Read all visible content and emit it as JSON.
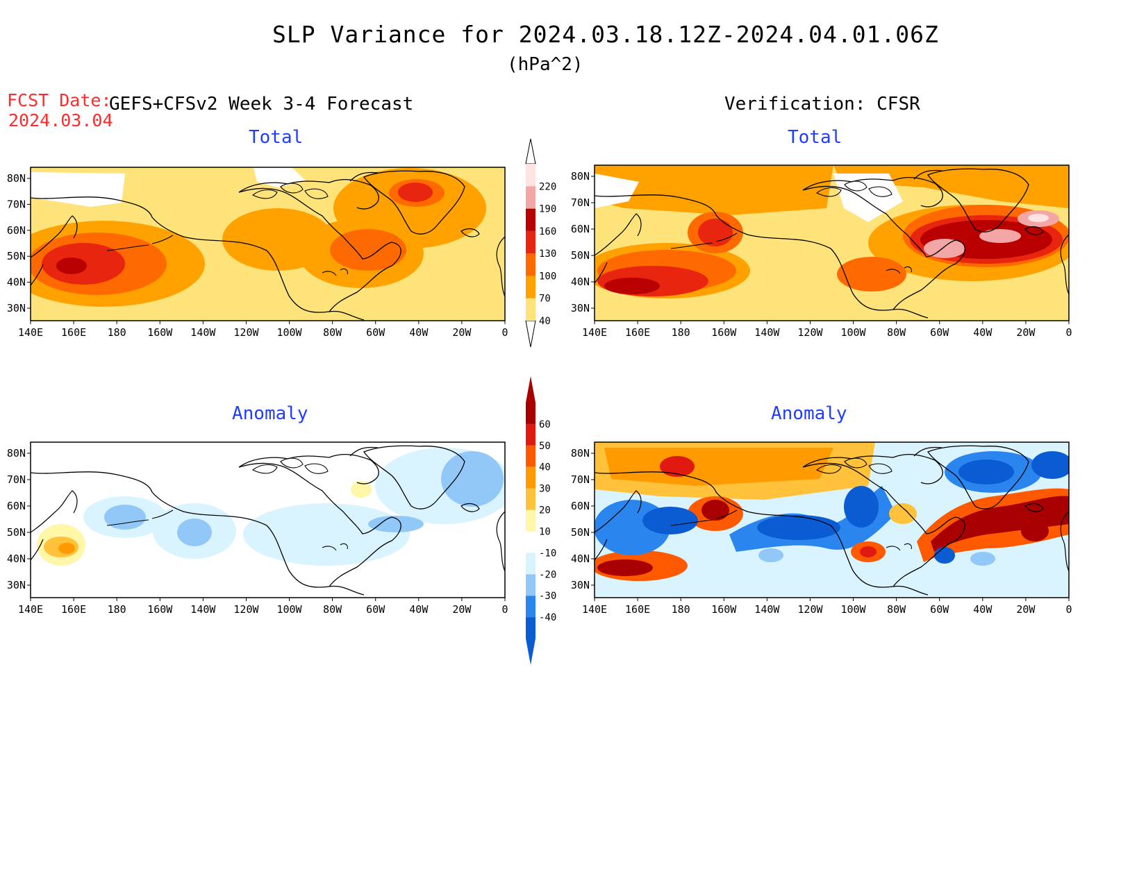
{
  "header": {
    "title": "SLP Variance for 2024.03.18.12Z-2024.04.01.06Z",
    "units": "(hPa^2)",
    "fcst_label": "FCST Date:",
    "fcst_date": "2024.03.04",
    "left_heading": "GEFS+CFSv2 Week 3-4 Forecast",
    "right_heading": "Verification: CFSR"
  },
  "panels": [
    {
      "id": "forecast-total",
      "title": "Total"
    },
    {
      "id": "verification-total",
      "title": "Total"
    },
    {
      "id": "forecast-anomaly",
      "title": "Anomaly"
    },
    {
      "id": "verification-anomaly",
      "title": "Anomaly"
    }
  ],
  "axes": {
    "lon_labels": [
      "140E",
      "160E",
      "180",
      "160W",
      "140W",
      "120W",
      "100W",
      "80W",
      "60W",
      "40W",
      "20W",
      "0"
    ],
    "lat_labels": [
      "30N",
      "40N",
      "50N",
      "60N",
      "70N",
      "80N"
    ]
  },
  "colorbars": {
    "total": {
      "levels": [
        "40",
        "70",
        "100",
        "130",
        "160",
        "190",
        "220"
      ],
      "colors": [
        "#fde37a",
        "#ffa200",
        "#ff6a00",
        "#e8250f",
        "#b80000",
        "#f2a6a6",
        "#ffe3e3"
      ]
    },
    "anomaly": {
      "levels": [
        "-40",
        "-30",
        "-20",
        "-10",
        "10",
        "20",
        "30",
        "40",
        "50",
        "60"
      ],
      "colors": [
        "#0b5bd3",
        "#2a86ee",
        "#92c8f7",
        "#d9f3ff",
        "#ffffff",
        "#fff6a8",
        "#ffc23a",
        "#ff9a00",
        "#ff5a00",
        "#e01a10",
        "#a80000"
      ]
    }
  },
  "colors": {
    "title_text": "#000000",
    "fcst_date": "#ff2a2a",
    "panel_title": "#1f3cff"
  }
}
